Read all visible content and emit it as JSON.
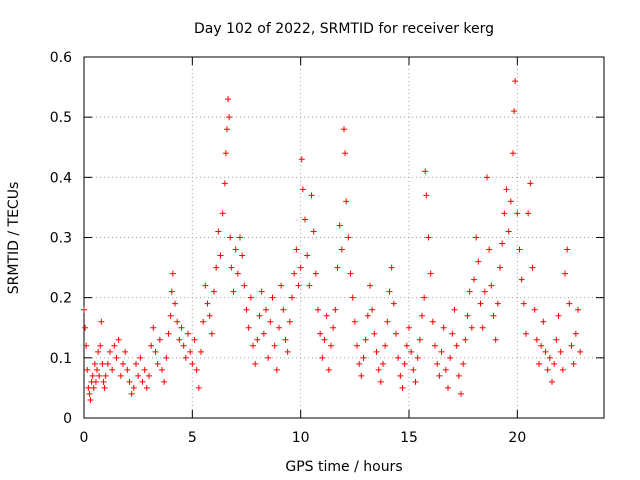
{
  "chart_data": {
    "type": "scatter",
    "title": "Day 102 of 2022, SRMTID for receiver kerg",
    "xlabel": "GPS time / hours",
    "ylabel": "SRMTID / TECUs",
    "xlim": [
      0,
      24
    ],
    "ylim": [
      0,
      0.6
    ],
    "xticks": [
      0,
      5,
      10,
      15,
      20
    ],
    "xtick_labels": [
      "0",
      "5",
      "10",
      "15",
      "20"
    ],
    "yticks": [
      0,
      0.1,
      0.2,
      0.3,
      0.4,
      0.5,
      0.6
    ],
    "ytick_labels": [
      "0",
      "0.1",
      "0.2",
      "0.3",
      "0.4",
      "0.5",
      "0.6"
    ],
    "grid": true,
    "marker": "+",
    "color": "#ff0000",
    "series": [
      {
        "name": "SRMTID",
        "points": [
          [
            0.0,
            0.18
          ],
          [
            0.05,
            0.15
          ],
          [
            0.1,
            0.12
          ],
          [
            0.15,
            0.08
          ],
          [
            0.2,
            0.05
          ],
          [
            0.25,
            0.04
          ],
          [
            0.3,
            0.03
          ],
          [
            0.35,
            0.06
          ],
          [
            0.4,
            0.07
          ],
          [
            0.45,
            0.05
          ],
          [
            0.5,
            0.09
          ],
          [
            0.55,
            0.06
          ],
          [
            0.6,
            0.08
          ],
          [
            0.65,
            0.11
          ],
          [
            0.7,
            0.07
          ],
          [
            0.75,
            0.12
          ],
          [
            0.8,
            0.16
          ],
          [
            0.85,
            0.09
          ],
          [
            0.9,
            0.06
          ],
          [
            0.95,
            0.05
          ],
          [
            1.0,
            0.07
          ],
          [
            1.1,
            0.09
          ],
          [
            1.2,
            0.11
          ],
          [
            1.3,
            0.08
          ],
          [
            1.4,
            0.12
          ],
          [
            1.5,
            0.1
          ],
          [
            1.6,
            0.13
          ],
          [
            1.7,
            0.07
          ],
          [
            1.8,
            0.09
          ],
          [
            1.9,
            0.11
          ],
          [
            2.0,
            0.08
          ],
          [
            2.1,
            0.06
          ],
          [
            2.2,
            0.04
          ],
          [
            2.3,
            0.05
          ],
          [
            2.4,
            0.09
          ],
          [
            2.5,
            0.07
          ],
          [
            2.6,
            0.1
          ],
          [
            2.7,
            0.06
          ],
          [
            2.8,
            0.08
          ],
          [
            2.9,
            0.05
          ],
          [
            3.0,
            0.07
          ],
          [
            3.1,
            0.12
          ],
          [
            3.2,
            0.15
          ],
          [
            3.3,
            0.11
          ],
          [
            3.4,
            0.09
          ],
          [
            3.5,
            0.13
          ],
          [
            3.6,
            0.08
          ],
          [
            3.7,
            0.06
          ],
          [
            3.8,
            0.1
          ],
          [
            3.9,
            0.14
          ],
          [
            4.0,
            0.17
          ],
          [
            4.05,
            0.21
          ],
          [
            4.1,
            0.24
          ],
          [
            4.2,
            0.19
          ],
          [
            4.3,
            0.16
          ],
          [
            4.4,
            0.13
          ],
          [
            4.5,
            0.15
          ],
          [
            4.6,
            0.12
          ],
          [
            4.7,
            0.1
          ],
          [
            4.8,
            0.14
          ],
          [
            4.9,
            0.11
          ],
          [
            5.0,
            0.09
          ],
          [
            5.1,
            0.13
          ],
          [
            5.2,
            0.08
          ],
          [
            5.3,
            0.05
          ],
          [
            5.4,
            0.11
          ],
          [
            5.5,
            0.16
          ],
          [
            5.6,
            0.22
          ],
          [
            5.7,
            0.19
          ],
          [
            5.8,
            0.17
          ],
          [
            5.9,
            0.14
          ],
          [
            6.0,
            0.21
          ],
          [
            6.1,
            0.25
          ],
          [
            6.2,
            0.31
          ],
          [
            6.3,
            0.27
          ],
          [
            6.4,
            0.34
          ],
          [
            6.5,
            0.39
          ],
          [
            6.55,
            0.44
          ],
          [
            6.6,
            0.48
          ],
          [
            6.65,
            0.53
          ],
          [
            6.7,
            0.5
          ],
          [
            6.75,
            0.3
          ],
          [
            6.8,
            0.25
          ],
          [
            6.9,
            0.21
          ],
          [
            7.0,
            0.28
          ],
          [
            7.1,
            0.24
          ],
          [
            7.2,
            0.3
          ],
          [
            7.3,
            0.27
          ],
          [
            7.4,
            0.22
          ],
          [
            7.5,
            0.18
          ],
          [
            7.6,
            0.15
          ],
          [
            7.7,
            0.2
          ],
          [
            7.8,
            0.12
          ],
          [
            7.9,
            0.09
          ],
          [
            8.0,
            0.13
          ],
          [
            8.1,
            0.17
          ],
          [
            8.2,
            0.21
          ],
          [
            8.3,
            0.14
          ],
          [
            8.4,
            0.18
          ],
          [
            8.5,
            0.1
          ],
          [
            8.6,
            0.16
          ],
          [
            8.7,
            0.2
          ],
          [
            8.8,
            0.12
          ],
          [
            8.9,
            0.08
          ],
          [
            9.0,
            0.15
          ],
          [
            9.1,
            0.22
          ],
          [
            9.2,
            0.18
          ],
          [
            9.3,
            0.13
          ],
          [
            9.4,
            0.11
          ],
          [
            9.5,
            0.16
          ],
          [
            9.6,
            0.2
          ],
          [
            9.7,
            0.24
          ],
          [
            9.8,
            0.28
          ],
          [
            9.9,
            0.22
          ],
          [
            10.0,
            0.25
          ],
          [
            10.05,
            0.43
          ],
          [
            10.1,
            0.38
          ],
          [
            10.2,
            0.33
          ],
          [
            10.3,
            0.27
          ],
          [
            10.4,
            0.22
          ],
          [
            10.5,
            0.37
          ],
          [
            10.6,
            0.31
          ],
          [
            10.7,
            0.24
          ],
          [
            10.8,
            0.18
          ],
          [
            10.9,
            0.14
          ],
          [
            11.0,
            0.1
          ],
          [
            11.1,
            0.13
          ],
          [
            11.2,
            0.17
          ],
          [
            11.3,
            0.08
          ],
          [
            11.4,
            0.12
          ],
          [
            11.5,
            0.15
          ],
          [
            11.6,
            0.18
          ],
          [
            11.7,
            0.25
          ],
          [
            11.8,
            0.32
          ],
          [
            11.9,
            0.28
          ],
          [
            12.0,
            0.48
          ],
          [
            12.05,
            0.44
          ],
          [
            12.1,
            0.36
          ],
          [
            12.2,
            0.3
          ],
          [
            12.3,
            0.24
          ],
          [
            12.4,
            0.2
          ],
          [
            12.5,
            0.16
          ],
          [
            12.6,
            0.12
          ],
          [
            12.7,
            0.09
          ],
          [
            12.8,
            0.07
          ],
          [
            12.9,
            0.1
          ],
          [
            13.0,
            0.13
          ],
          [
            13.1,
            0.17
          ],
          [
            13.2,
            0.22
          ],
          [
            13.3,
            0.18
          ],
          [
            13.4,
            0.14
          ],
          [
            13.5,
            0.11
          ],
          [
            13.6,
            0.08
          ],
          [
            13.7,
            0.06
          ],
          [
            13.8,
            0.09
          ],
          [
            13.9,
            0.12
          ],
          [
            14.0,
            0.16
          ],
          [
            14.1,
            0.21
          ],
          [
            14.2,
            0.25
          ],
          [
            14.3,
            0.19
          ],
          [
            14.4,
            0.14
          ],
          [
            14.5,
            0.1
          ],
          [
            14.6,
            0.07
          ],
          [
            14.7,
            0.05
          ],
          [
            14.8,
            0.09
          ],
          [
            14.9,
            0.12
          ],
          [
            15.0,
            0.15
          ],
          [
            15.1,
            0.11
          ],
          [
            15.2,
            0.08
          ],
          [
            15.3,
            0.06
          ],
          [
            15.4,
            0.1
          ],
          [
            15.5,
            0.13
          ],
          [
            15.6,
            0.17
          ],
          [
            15.7,
            0.2
          ],
          [
            15.75,
            0.41
          ],
          [
            15.8,
            0.37
          ],
          [
            15.9,
            0.3
          ],
          [
            16.0,
            0.24
          ],
          [
            16.1,
            0.16
          ],
          [
            16.2,
            0.12
          ],
          [
            16.3,
            0.09
          ],
          [
            16.4,
            0.07
          ],
          [
            16.5,
            0.11
          ],
          [
            16.6,
            0.15
          ],
          [
            16.7,
            0.08
          ],
          [
            16.8,
            0.05
          ],
          [
            16.9,
            0.1
          ],
          [
            17.0,
            0.14
          ],
          [
            17.1,
            0.18
          ],
          [
            17.2,
            0.12
          ],
          [
            17.3,
            0.07
          ],
          [
            17.4,
            0.04
          ],
          [
            17.5,
            0.09
          ],
          [
            17.6,
            0.13
          ],
          [
            17.7,
            0.17
          ],
          [
            17.8,
            0.21
          ],
          [
            17.9,
            0.15
          ],
          [
            18.0,
            0.23
          ],
          [
            18.1,
            0.3
          ],
          [
            18.2,
            0.26
          ],
          [
            18.3,
            0.19
          ],
          [
            18.4,
            0.15
          ],
          [
            18.5,
            0.21
          ],
          [
            18.6,
            0.4
          ],
          [
            18.7,
            0.28
          ],
          [
            18.8,
            0.22
          ],
          [
            18.9,
            0.17
          ],
          [
            19.0,
            0.13
          ],
          [
            19.1,
            0.19
          ],
          [
            19.2,
            0.25
          ],
          [
            19.3,
            0.29
          ],
          [
            19.4,
            0.34
          ],
          [
            19.5,
            0.38
          ],
          [
            19.6,
            0.31
          ],
          [
            19.7,
            0.36
          ],
          [
            19.8,
            0.44
          ],
          [
            19.85,
            0.51
          ],
          [
            19.9,
            0.56
          ],
          [
            20.0,
            0.34
          ],
          [
            20.1,
            0.28
          ],
          [
            20.2,
            0.23
          ],
          [
            20.3,
            0.19
          ],
          [
            20.4,
            0.14
          ],
          [
            20.5,
            0.34
          ],
          [
            20.6,
            0.39
          ],
          [
            20.7,
            0.25
          ],
          [
            20.8,
            0.18
          ],
          [
            20.9,
            0.13
          ],
          [
            21.0,
            0.09
          ],
          [
            21.1,
            0.12
          ],
          [
            21.2,
            0.16
          ],
          [
            21.3,
            0.11
          ],
          [
            21.4,
            0.08
          ],
          [
            21.5,
            0.1
          ],
          [
            21.6,
            0.06
          ],
          [
            21.7,
            0.09
          ],
          [
            21.8,
            0.13
          ],
          [
            21.9,
            0.17
          ],
          [
            22.0,
            0.11
          ],
          [
            22.1,
            0.08
          ],
          [
            22.2,
            0.24
          ],
          [
            22.3,
            0.28
          ],
          [
            22.4,
            0.19
          ],
          [
            22.5,
            0.12
          ],
          [
            22.6,
            0.09
          ],
          [
            22.7,
            0.14
          ],
          [
            22.8,
            0.18
          ],
          [
            22.9,
            0.11
          ]
        ]
      }
    ]
  }
}
